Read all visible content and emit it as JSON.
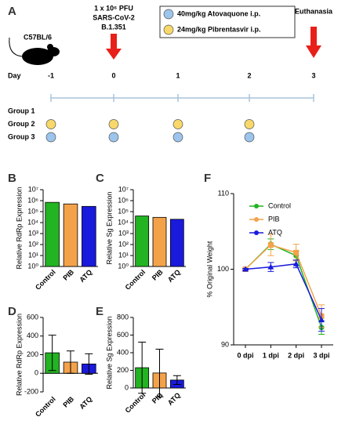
{
  "diagram": {
    "panel": "A",
    "strain": "C57BL/6",
    "inoculum": [
      "1 x 10⁶ PFU",
      "SARS-CoV-2",
      "B.1.351"
    ],
    "legend": [
      {
        "label": "40mg/kg Atovaquone i.p.",
        "color": "#9cc4ec"
      },
      {
        "label": "24mg/kg Pibrentasvir i.p.",
        "color": "#f8d86a"
      }
    ],
    "endpoint": "Euthanasia",
    "day_label": "Day",
    "days": [
      "-1",
      "0",
      "1",
      "2",
      "3"
    ],
    "groups": [
      "Group 1",
      "Group 2",
      "Group 3"
    ]
  },
  "chart_data": [
    {
      "type": "bar",
      "label": "B",
      "ylabel": "Relative RdRp Expression",
      "log": true,
      "categories": [
        "Control",
        "PIB",
        "ATQ"
      ],
      "values": [
        700000,
        500000,
        300000
      ],
      "colors": [
        "#22b422",
        "#f4a24a",
        "#1a1adc"
      ],
      "ylim": [
        1,
        10000000
      ],
      "yticks": [
        {
          "value": 1,
          "label": "10⁰"
        },
        {
          "value": 10,
          "label": "10¹"
        },
        {
          "value": 100,
          "label": "10²"
        },
        {
          "value": 1000,
          "label": "10³"
        },
        {
          "value": 10000,
          "label": "10⁴"
        },
        {
          "value": 100000,
          "label": "10⁵"
        },
        {
          "value": 1000000,
          "label": "10⁶"
        },
        {
          "value": 10000000,
          "label": "10⁷"
        }
      ]
    },
    {
      "type": "bar",
      "label": "C",
      "ylabel": "Relative Sg Expression",
      "log": true,
      "categories": [
        "Control",
        "PIB",
        "ATQ"
      ],
      "values": [
        40000,
        30000,
        20000
      ],
      "colors": [
        "#22b422",
        "#f4a24a",
        "#1a1adc"
      ],
      "ylim": [
        1,
        10000000
      ],
      "yticks": [
        {
          "value": 1,
          "label": "10⁰"
        },
        {
          "value": 10,
          "label": "10¹"
        },
        {
          "value": 100,
          "label": "10²"
        },
        {
          "value": 1000,
          "label": "10³"
        },
        {
          "value": 10000,
          "label": "10⁴"
        },
        {
          "value": 100000,
          "label": "10⁵"
        },
        {
          "value": 1000000,
          "label": "10⁶"
        },
        {
          "value": 10000000,
          "label": "10⁷"
        }
      ]
    },
    {
      "type": "bar",
      "label": "D",
      "ylabel": "Relative RdRp Expression",
      "categories": [
        "Control",
        "PIB",
        "ATQ"
      ],
      "values": [
        220,
        120,
        100
      ],
      "errors": [
        190,
        120,
        110
      ],
      "colors": [
        "#22b422",
        "#f4a24a",
        "#1a1adc"
      ],
      "ylim": [
        -200,
        600
      ],
      "yticks": [
        -200,
        0,
        200,
        400,
        600
      ]
    },
    {
      "type": "bar",
      "label": "E",
      "ylabel": "Relative Sg Expression",
      "categories": [
        "Control",
        "PIB",
        "ATQ"
      ],
      "values": [
        230,
        170,
        90
      ],
      "errors": [
        290,
        270,
        50
      ],
      "colors": [
        "#22b422",
        "#f4a24a",
        "#1a1adc"
      ],
      "ylim": [
        0,
        800
      ],
      "yticks": [
        0,
        200,
        400,
        600,
        800
      ]
    },
    {
      "type": "line",
      "label": "F",
      "ylabel": "% Original Weight",
      "categories": [
        "0 dpi",
        "1 dpi",
        "2 dpi",
        "3 dpi"
      ],
      "series": [
        {
          "name": "Control",
          "color": "#22b422",
          "values": [
            100,
            103.3,
            101.8,
            92.3
          ],
          "errors": [
            0.1,
            0.7,
            0.6,
            0.9
          ]
        },
        {
          "name": "PIB",
          "color": "#f4a24a",
          "values": [
            100,
            103.2,
            102.2,
            93.8
          ],
          "errors": [
            0.1,
            1.4,
            1.1,
            1.5
          ]
        },
        {
          "name": "ATQ",
          "color": "#1a1adc",
          "values": [
            100,
            100.3,
            100.7,
            93.3
          ],
          "errors": [
            0.1,
            0.6,
            0.5,
            1.5
          ]
        }
      ],
      "ylim": [
        90,
        110
      ],
      "yticks": [
        90,
        100,
        110
      ]
    }
  ]
}
